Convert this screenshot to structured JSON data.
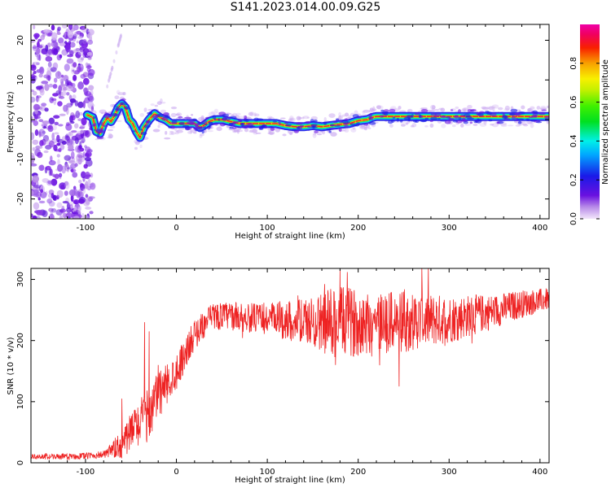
{
  "title": "S141.2023.014.00.09.G25",
  "chart_data": [
    {
      "type": "heatmap",
      "xlabel": "Height of straight line (km)",
      "ylabel": "Frequency (Hz)",
      "xlim": [
        -160,
        410
      ],
      "ylim": [
        -25,
        24
      ],
      "xticks": [
        -100,
        0,
        100,
        200,
        300,
        400
      ],
      "yticks": [
        -20,
        -10,
        0,
        10,
        20
      ],
      "colorbar": {
        "label": "Normalized spectral amplitude",
        "range": [
          0,
          1
        ],
        "ticks": [
          "0.0",
          "0.2",
          "0.4",
          "0.6",
          "0.8"
        ],
        "tick_values": [
          0,
          0.2,
          0.4,
          0.6,
          0.8
        ],
        "colormap": "gist_ncar-like (purple-blue-cyan-green-yellow-red-magenta)"
      },
      "ridge": {
        "x": [
          -98,
          -92,
          -88,
          -84,
          -80,
          -76,
          -72,
          -68,
          -64,
          -60,
          -56,
          -52,
          -48,
          -44,
          -40,
          -36,
          -30,
          -24,
          -18,
          -12,
          -6,
          0,
          10,
          20,
          26,
          30,
          36,
          42,
          50,
          60,
          70,
          80,
          90,
          100,
          110,
          120,
          130,
          140,
          150,
          160,
          170,
          180,
          190,
          200,
          210,
          215,
          220,
          240,
          260,
          280,
          300,
          320,
          340,
          360,
          380,
          400,
          410
        ],
        "y": [
          1.2,
          0.5,
          -3,
          -3.5,
          -1,
          0.5,
          -0.5,
          1,
          3,
          4,
          3,
          0,
          -1,
          -3,
          -4.5,
          -2,
          0,
          1.5,
          0.5,
          0,
          -1,
          -1,
          -1,
          -1,
          -2,
          -1.5,
          -0.5,
          0,
          0,
          -0.5,
          -1,
          -1,
          -1,
          -1,
          -1,
          -1.5,
          -1.8,
          -1.8,
          -1.5,
          -1.8,
          -1.5,
          -1.2,
          -1.0,
          -0.3,
          0,
          0.5,
          0.8,
          0.8,
          0.8,
          0.8,
          0.8,
          0.8,
          0.8,
          0.8,
          0.8,
          0.8,
          0.8
        ]
      },
      "noise_region_x": [
        -160,
        -100
      ],
      "background_color": "#ffffff"
    },
    {
      "type": "line",
      "xlabel": "Height of straight line (km)",
      "ylabel": "SNR (10 * v/v)",
      "xlim": [
        -160,
        410
      ],
      "ylim": [
        0,
        318
      ],
      "xticks": [
        -100,
        0,
        100,
        200,
        300,
        400
      ],
      "yticks": [
        0,
        100,
        200,
        300
      ],
      "series": [
        {
          "color": "#ee2222",
          "trend_x": [
            -160,
            -120,
            -90,
            -75,
            -60,
            -45,
            -30,
            -20,
            -10,
            0,
            10,
            20,
            30,
            40,
            60,
            100,
            150,
            200,
            250,
            300,
            350,
            380,
            410
          ],
          "trend_y": [
            10,
            10,
            12,
            15,
            30,
            60,
            80,
            110,
            130,
            150,
            180,
            210,
            225,
            240,
            240,
            235,
            230,
            230,
            230,
            235,
            248,
            260,
            268
          ],
          "noise_x": [
            -160,
            -80,
            -60,
            -30,
            0,
            30,
            90,
            150,
            170,
            200,
            250,
            300,
            350,
            410
          ],
          "noise_amp": [
            4,
            6,
            25,
            45,
            30,
            22,
            25,
            40,
            60,
            55,
            50,
            40,
            28,
            18
          ],
          "spikes": [
            [
              -60,
              105
            ],
            [
              -45,
              75
            ],
            [
              -35,
              230
            ],
            [
              -30,
              215
            ],
            [
              -20,
              160
            ],
            [
              175,
              305
            ],
            [
              180,
              315
            ],
            [
              188,
              312
            ],
            [
              245,
              125
            ],
            [
              270,
              318
            ],
            [
              175,
              160
            ]
          ]
        }
      ]
    }
  ]
}
